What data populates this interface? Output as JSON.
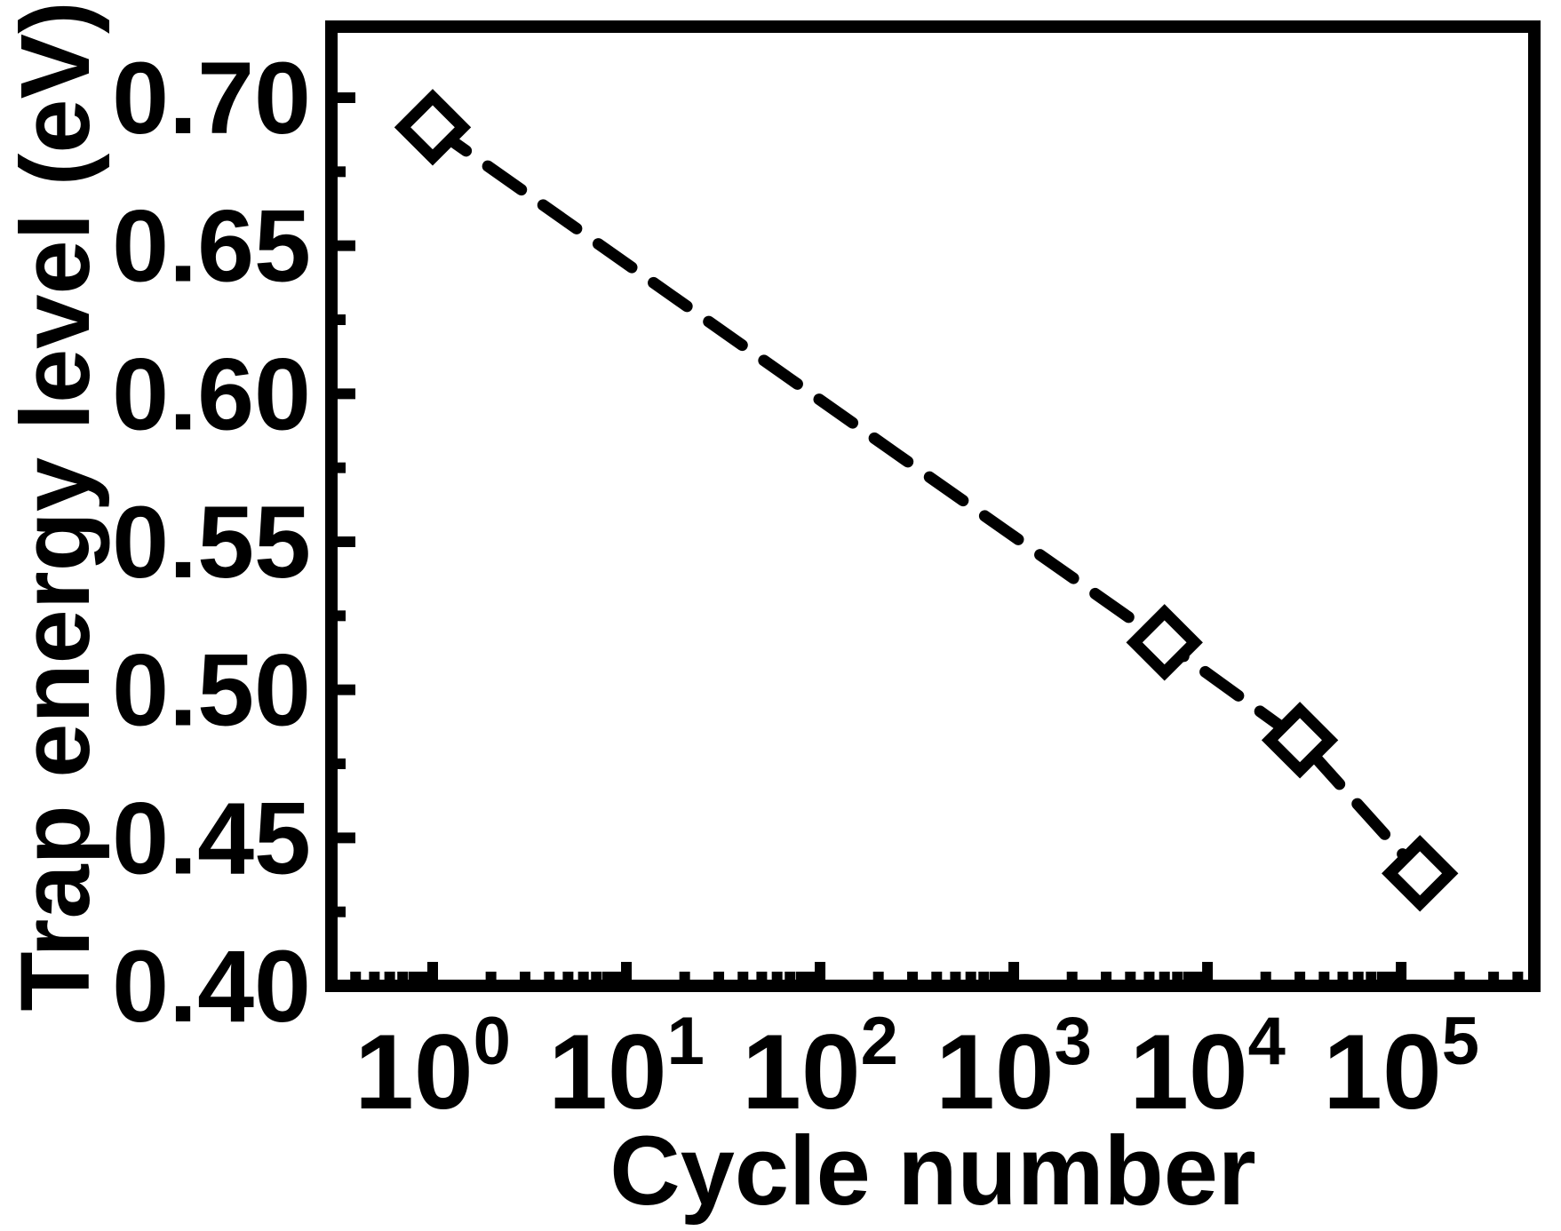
{
  "figure": {
    "background_color": "#ffffff",
    "foreground_color": "#000000"
  },
  "chart_data": {
    "type": "scatter",
    "title": "",
    "xlabel": "Cycle number",
    "ylabel": "Trap energy level (eV)",
    "x_scale": "log",
    "y_scale": "linear",
    "xlim": [
      0.3,
      487000
    ],
    "ylim": [
      0.4,
      0.724
    ],
    "grid": false,
    "legend": false,
    "x_major_ticks": [
      1,
      10,
      100,
      1000,
      10000,
      100000
    ],
    "x_tick_labels": [
      {
        "base": "10",
        "exp": "0"
      },
      {
        "base": "10",
        "exp": "1"
      },
      {
        "base": "10",
        "exp": "2"
      },
      {
        "base": "10",
        "exp": "3"
      },
      {
        "base": "10",
        "exp": "4"
      },
      {
        "base": "10",
        "exp": "5"
      }
    ],
    "x_minor_multipliers": [
      2,
      3,
      4,
      5,
      6,
      7,
      8,
      9
    ],
    "x_minor_decades": [
      -1,
      0,
      1,
      2,
      3,
      4,
      5
    ],
    "y_major_ticks": [
      0.4,
      0.45,
      0.5,
      0.55,
      0.6,
      0.65,
      0.7
    ],
    "y_tick_labels": [
      "0.40",
      "0.45",
      "0.50",
      "0.55",
      "0.60",
      "0.65",
      "0.70"
    ],
    "y_minor_ticks": [
      0.425,
      0.475,
      0.525,
      0.575,
      0.625,
      0.675
    ],
    "series": [
      {
        "name": "trap-energy-level",
        "marker": "open-diamond",
        "line_style": "dashed",
        "color": "#000000",
        "points": [
          {
            "x": 1,
            "y": 0.69
          },
          {
            "x": 6000,
            "y": 0.516
          },
          {
            "x": 30000,
            "y": 0.483
          },
          {
            "x": 125000,
            "y": 0.438
          }
        ]
      }
    ]
  }
}
